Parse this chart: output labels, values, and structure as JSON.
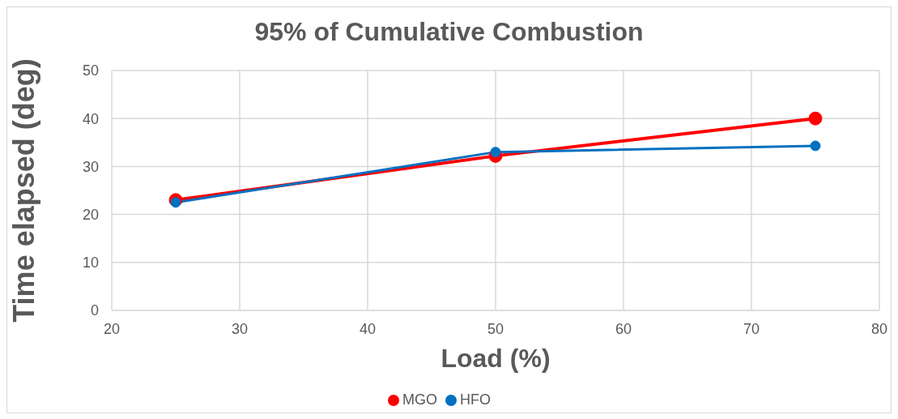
{
  "chart_data": {
    "type": "line",
    "title": "95% of Cumulative Combustion",
    "xlabel": "Load (%)",
    "ylabel": "Time elapsed (deg)",
    "x": [
      25,
      50,
      75
    ],
    "series": [
      {
        "name": "MGO",
        "color": "#ff0000",
        "values": [
          23,
          32.2,
          40
        ]
      },
      {
        "name": "HFO",
        "color": "#0070c0",
        "values": [
          22.5,
          33,
          34.3
        ]
      }
    ],
    "xlim": [
      20,
      80
    ],
    "xticks": [
      20,
      30,
      40,
      50,
      60,
      70,
      80
    ],
    "ylim": [
      0,
      50
    ],
    "yticks": [
      0,
      10,
      20,
      30,
      40,
      50
    ],
    "grid": true,
    "legend": "bottom",
    "marker": "circle",
    "line_style": "solid"
  }
}
